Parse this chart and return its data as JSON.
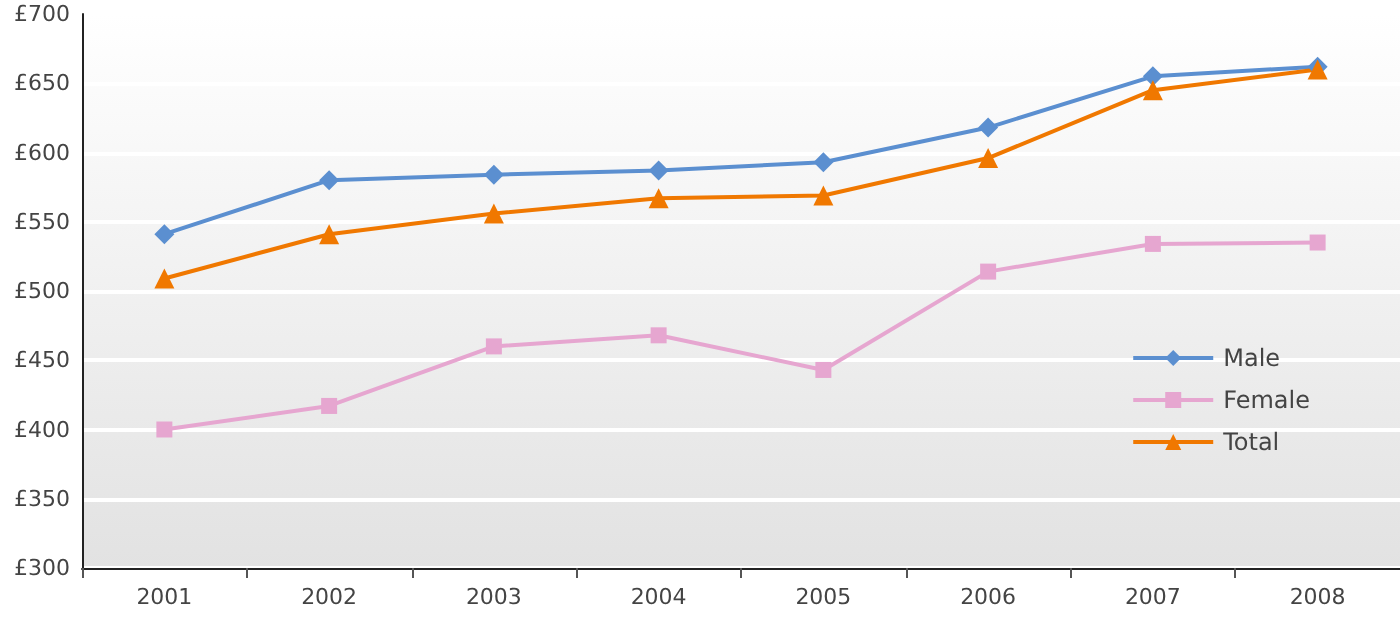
{
  "chart_data": {
    "type": "line",
    "categories": [
      "2001",
      "2002",
      "2003",
      "2004",
      "2005",
      "2006",
      "2007",
      "2008"
    ],
    "series": [
      {
        "name": "Male",
        "color": "#5b8fd0",
        "marker": "diamond",
        "values": [
          541,
          580,
          584,
          587,
          593,
          618,
          655,
          662
        ]
      },
      {
        "name": "Female",
        "color": "#e6a6d0",
        "marker": "square",
        "values": [
          400,
          417,
          460,
          468,
          443,
          514,
          534,
          535
        ]
      },
      {
        "name": "Total",
        "color": "#f07800",
        "marker": "triangle",
        "values": [
          509,
          541,
          556,
          567,
          569,
          596,
          645,
          660
        ]
      }
    ],
    "ylim": [
      300,
      700
    ],
    "yticks": [
      {
        "value": 300,
        "label": "£300"
      },
      {
        "value": 350,
        "label": "£350"
      },
      {
        "value": 400,
        "label": "£400"
      },
      {
        "value": 450,
        "label": "£450"
      },
      {
        "value": 500,
        "label": "£500"
      },
      {
        "value": 550,
        "label": "£550"
      },
      {
        "value": 600,
        "label": "£600"
      },
      {
        "value": 650,
        "label": "£650"
      },
      {
        "value": 700,
        "label": "£700"
      }
    ],
    "grid": "y",
    "legend": "right",
    "line_style": "solid"
  }
}
